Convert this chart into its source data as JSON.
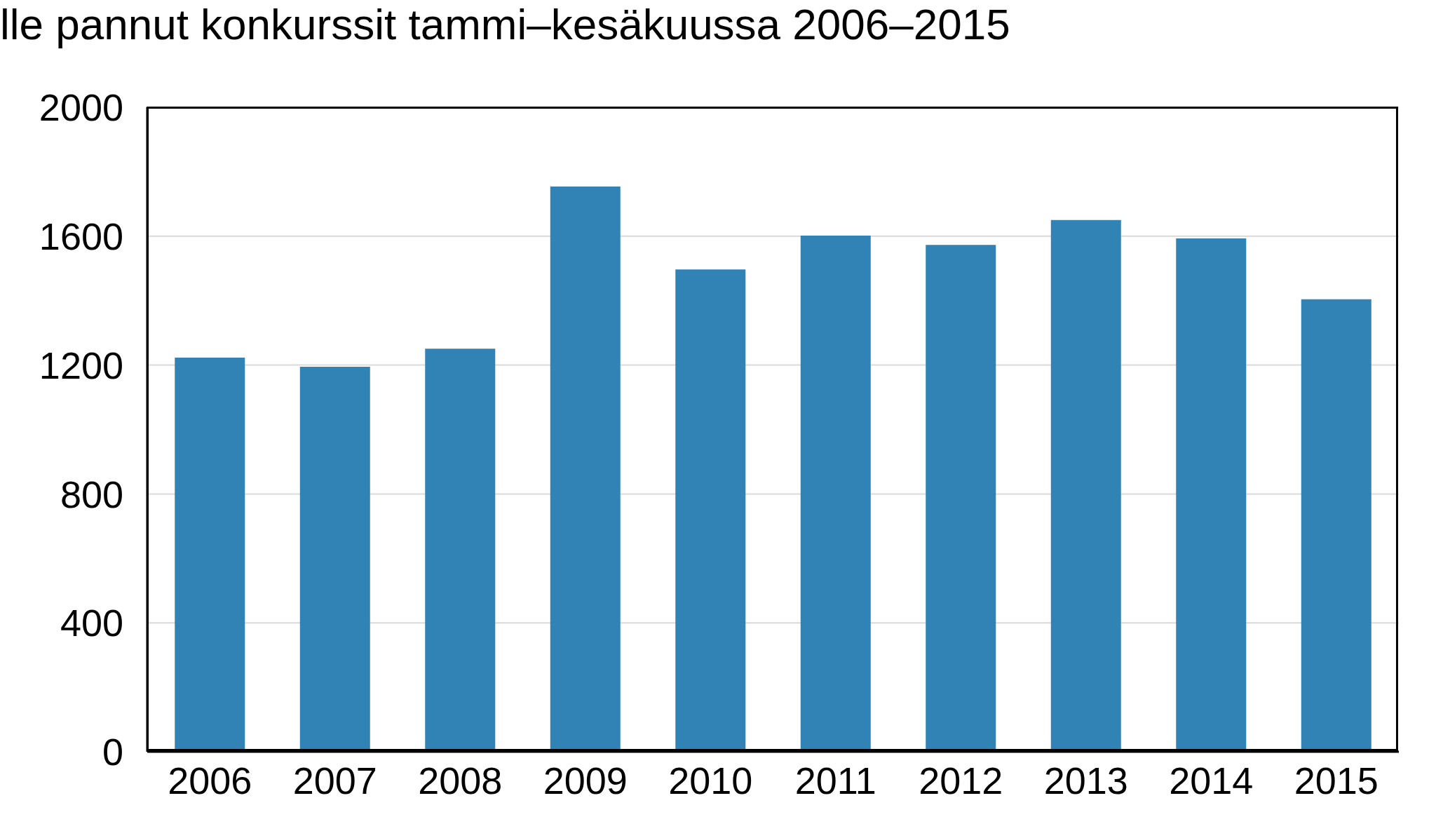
{
  "chart_data": {
    "type": "bar",
    "title": "lle pannut konkurssit tammi–kesäkuussa 2006–2015",
    "categories": [
      "2006",
      "2007",
      "2008",
      "2009",
      "2010",
      "2011",
      "2012",
      "2013",
      "2014",
      "2015"
    ],
    "values": [
      1223,
      1195,
      1251,
      1754,
      1497,
      1602,
      1573,
      1650,
      1593,
      1404
    ],
    "color": "#3182b5",
    "ylim": [
      0,
      2000
    ],
    "yticks": [
      0,
      400,
      800,
      1200,
      1600,
      2000
    ],
    "grid": "y"
  }
}
